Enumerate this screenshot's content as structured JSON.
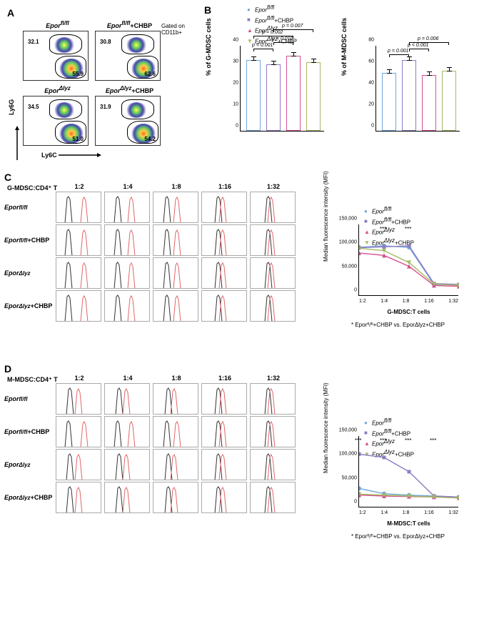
{
  "colors": {
    "group1": "#6fa8dc",
    "group2": "#8e7cc3",
    "group3": "#d5508f",
    "group4": "#a3b962",
    "hist_black": "#333333",
    "hist_red": "#e06666",
    "grid": "#e0e0e0"
  },
  "conditions": {
    "g1": "Epor",
    "g1sup": "fl/fl",
    "g2": "Epor",
    "g2sup": "fl/fl",
    "g2suf": "+CHBP",
    "g3": "Epor",
    "g3sup": "Δlyz",
    "g4": "Epor",
    "g4sup": "Δlyz",
    "g4suf": "+CHBP"
  },
  "panelA": {
    "label": "A",
    "gated": "Gated on CD11b+",
    "axis_y": "Ly6G",
    "axis_x": "Ly6C",
    "plots": [
      {
        "title_idx": 1,
        "g_val": "32.1",
        "m_val": "55.9"
      },
      {
        "title_idx": 2,
        "g_val": "30.8",
        "m_val": "62.6"
      },
      {
        "title_idx": 3,
        "g_val": "34.5",
        "m_val": "51.0"
      },
      {
        "title_idx": 4,
        "g_val": "31.9",
        "m_val": "54.2"
      }
    ]
  },
  "panelB": {
    "label": "B",
    "chart1": {
      "ylabel": "% of G-MDSC cells",
      "ylim": [
        0,
        40
      ],
      "ytick_step": 10,
      "values": [
        33,
        31,
        35,
        32
      ],
      "sigs": [
        {
          "from": 0,
          "to": 1,
          "y": 38,
          "text": "p < 0.001"
        },
        {
          "from": 1,
          "to": 2,
          "y": 41,
          "text": "p = 0.010"
        },
        {
          "from": 0,
          "to": 2,
          "y": 44,
          "text": "p = 0.002"
        },
        {
          "from": 1,
          "to": 3,
          "y": 47,
          "text": "p = 0.007"
        }
      ]
    },
    "chart2": {
      "ylabel": "% of M-MDSC cells",
      "ylim": [
        0,
        80
      ],
      "ytick_step": 20,
      "values": [
        54,
        66,
        52,
        56
      ],
      "sigs": [
        {
          "from": 0,
          "to": 1,
          "y": 71,
          "text": "p = 0.001"
        },
        {
          "from": 1,
          "to": 2,
          "y": 76,
          "text": "p < 0.001"
        },
        {
          "from": 1,
          "to": 3,
          "y": 82,
          "text": "p = 0.006"
        }
      ]
    }
  },
  "panelC": {
    "label": "C",
    "header": "G-MDSC:CD4⁺ T",
    "ratios": [
      "1:2",
      "1:4",
      "1:8",
      "1:16",
      "1:32"
    ],
    "line_chart": {
      "ylabel": "Median fluorescence intensity (MFI)",
      "xlabel": "G-MDSC:T cells",
      "ylim": [
        0,
        150000
      ],
      "ytick_step": 50000,
      "series": {
        "g1": [
          102000,
          105000,
          102000,
          24000,
          23000
        ],
        "g2": [
          101000,
          103000,
          105000,
          26000,
          24000
        ],
        "g3": [
          90000,
          85000,
          62000,
          22000,
          20000
        ],
        "g4": [
          100000,
          95000,
          70000,
          25000,
          22000
        ]
      },
      "stars": [
        {
          "x": 1,
          "txt": "***"
        },
        {
          "x": 2,
          "txt": "***"
        }
      ],
      "note": "* Eporᶠˡ/ᶠˡ+CHBP vs. EporΔlyz+CHBP"
    }
  },
  "panelD": {
    "label": "D",
    "header": "M-MDSC:CD4⁺ T",
    "ratios": [
      "1:2",
      "1:4",
      "1:8",
      "1:16",
      "1:32"
    ],
    "line_chart": {
      "ylabel": "Median fluorescence intensity (MFI)",
      "xlabel": "M-MDSC:T cells",
      "ylim": [
        0,
        150000
      ],
      "ytick_step": 50000,
      "series": {
        "g1": [
          40000,
          29000,
          26000,
          24000,
          22000
        ],
        "g2": [
          112000,
          105000,
          75000,
          24000,
          22000
        ],
        "g3": [
          26000,
          24000,
          23000,
          22000,
          20000
        ],
        "g4": [
          28000,
          26000,
          24000,
          22000,
          20000
        ]
      },
      "stars": [
        {
          "x": 0,
          "txt": "***"
        },
        {
          "x": 1,
          "txt": "***"
        },
        {
          "x": 2,
          "txt": "***"
        },
        {
          "x": 3,
          "txt": "***"
        }
      ],
      "note": "* Eporᶠˡ/ᶠˡ+CHBP vs. EporΔlyz+CHBP"
    }
  }
}
